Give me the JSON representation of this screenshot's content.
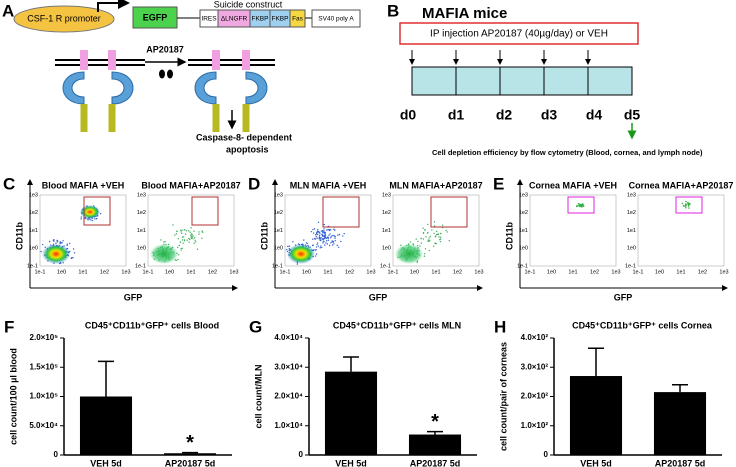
{
  "panel_a": {
    "letter": "A",
    "promoter": "CSF-1 R promoter",
    "egfp": "EGFP",
    "construct_title": "Suicide construct",
    "construct_parts": [
      "IRES",
      "ΔLNGFR",
      "FKBP",
      "FKBP",
      "Fas",
      "SV40 poly A"
    ],
    "drug": "AP20187",
    "outcome": [
      "Caspase-8- dependent",
      "apoptosis"
    ]
  },
  "panel_b": {
    "letter": "B",
    "title": "MAFIA mice",
    "injection": "IP injection AP20187 (40µg/day) or VEH",
    "days": [
      "d0",
      "d1",
      "d2",
      "d3",
      "d4",
      "d5"
    ],
    "readout": "Cell depletion efficiency by flow cytometry (Blood, cornea, and lymph node)"
  },
  "flow_panels": [
    {
      "letter": "C",
      "plots": [
        "Blood MAFIA +VEH",
        "Blood MAFIA+AP20187"
      ]
    },
    {
      "letter": "D",
      "plots": [
        "MLN MAFIA +VEH",
        "MLN MAFIA+AP20187"
      ]
    },
    {
      "letter": "E",
      "plots": [
        "Cornea MAFIA +VEH",
        "Cornea MAFIA+AP20187"
      ]
    }
  ],
  "flow_axes": {
    "y": "CD11b",
    "x": "GFP",
    "ticks": [
      "1e-1",
      "1e0",
      "1e1",
      "1e2",
      "1e3"
    ]
  },
  "chart_data": [
    {
      "letter": "F",
      "type": "bar",
      "title": "CD45⁺CD11b⁺GFP⁺ cells Blood",
      "y_label": "cell count/100 µl blood",
      "categories": [
        "VEH 5d",
        "AP20187 5d"
      ],
      "values": [
        100000,
        3000
      ],
      "errors": [
        60000,
        1000
      ],
      "color": "#000000",
      "ylim": [
        0,
        200000
      ],
      "yticks": [
        0,
        {
          "value": 50000,
          "label": "5.0×10⁴"
        },
        {
          "value": 100000,
          "label": "1.0×10⁵"
        },
        {
          "value": 150000,
          "label": "1.5×10⁵"
        },
        {
          "value": 200000,
          "label": "2.0×10⁵"
        }
      ],
      "annotation": "*"
    },
    {
      "letter": "G",
      "type": "bar",
      "title": "CD45⁺CD11b⁺GFP⁺ cells MLN",
      "y_label": "cell count/MLN",
      "categories": [
        "VEH 5d",
        "AP20187 5d"
      ],
      "values": [
        28500,
        7000
      ],
      "errors": [
        5000,
        1000
      ],
      "color": "#000000",
      "ylim": [
        0,
        40000
      ],
      "yticks": [
        0,
        {
          "value": 10000,
          "label": "1.0×10⁴"
        },
        {
          "value": 20000,
          "label": "2.0×10⁴"
        },
        {
          "value": 30000,
          "label": "3.0×10⁴"
        },
        {
          "value": 40000,
          "label": "4.0×10⁴"
        }
      ],
      "annotation": "*"
    },
    {
      "letter": "H",
      "type": "bar",
      "title": "CD45⁺CD11b⁺GFP⁺ cells Cornea",
      "y_label": "cell count/pair of corneas",
      "categories": [
        "VEH 5d",
        "AP20187 5d"
      ],
      "values": [
        270,
        215
      ],
      "errors": [
        95,
        25
      ],
      "color": "#000000",
      "ylim": [
        0,
        400
      ],
      "yticks": [
        0,
        {
          "value": 100,
          "label": "1.0×10²"
        },
        {
          "value": 200,
          "label": "2.0×10²"
        },
        {
          "value": 300,
          "label": "3.0×10²"
        },
        {
          "value": 400,
          "label": "4.0×10²"
        }
      ]
    }
  ]
}
